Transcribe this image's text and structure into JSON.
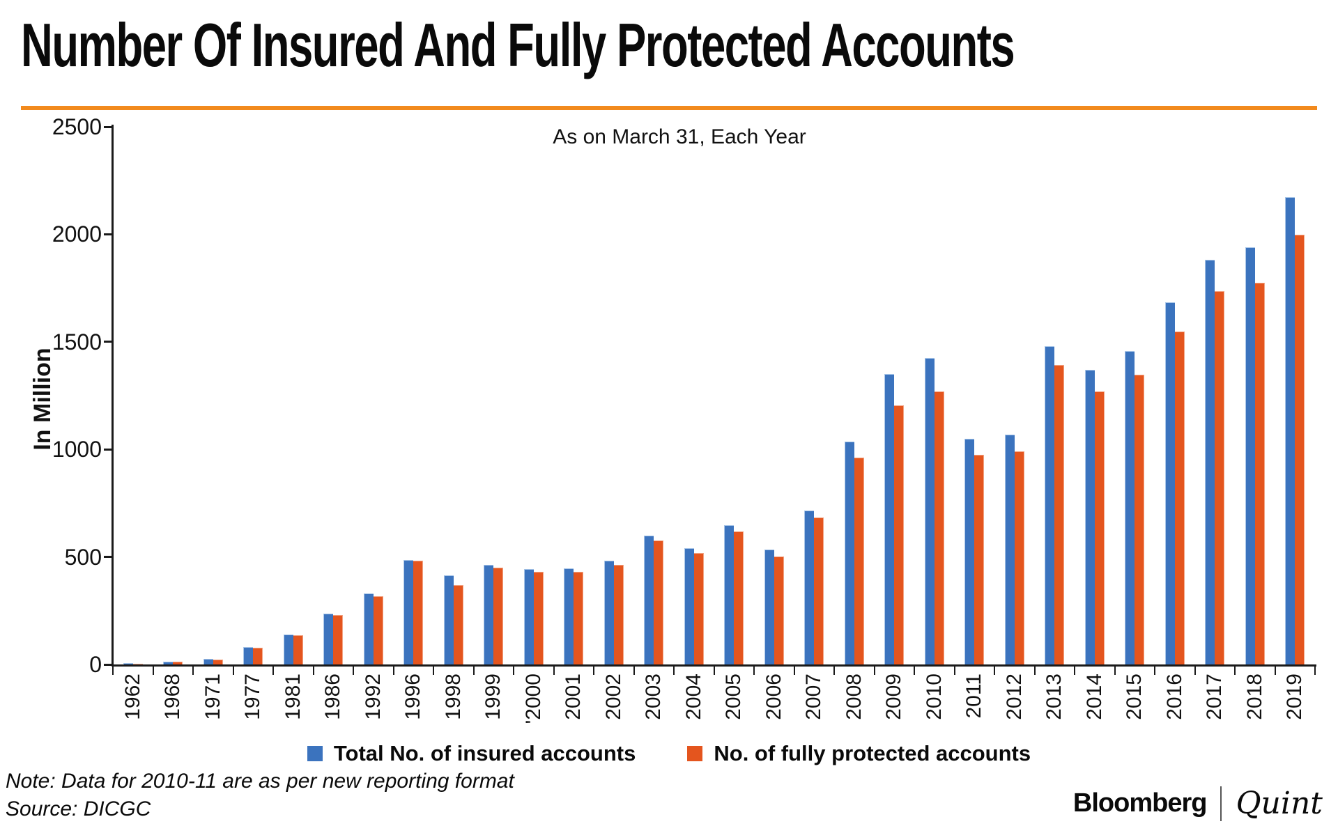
{
  "header": {
    "title": "Number Of Insured And Fully Protected Accounts",
    "rule_color": "#f28a1d"
  },
  "chart_data": {
    "type": "bar",
    "title": "Number Of Insured And Fully Protected Accounts",
    "subtitle": "As on March 31, Each Year",
    "xlabel": "",
    "ylabel": "In Million",
    "ylim": [
      0,
      2500
    ],
    "yticks": [
      0,
      500,
      1000,
      1500,
      2000,
      2500
    ],
    "grid": false,
    "legend_position": "bottom",
    "categories": [
      "1962",
      "1968",
      "1971",
      "1977",
      "1981",
      "1986",
      "1992",
      "1996",
      "1998",
      "1999",
      "'2000",
      "2001",
      "2002",
      "2003",
      "2004",
      "2005",
      "2006",
      "2007",
      "2008",
      "2009",
      "2010",
      "2011",
      "2012",
      "2013",
      "2014",
      "2015",
      "2016",
      "2017",
      "2018",
      "2019"
    ],
    "series": [
      {
        "name": "Total No. of insured accounts",
        "color": "#3b73be",
        "values": [
          5,
          14,
          27,
          80,
          140,
          235,
          331,
          487,
          415,
          463,
          443,
          447,
          483,
          599,
          542,
          648,
          535,
          716,
          1037,
          1351,
          1424,
          1049,
          1070,
          1481,
          1370,
          1457,
          1683,
          1882,
          1939,
          2174
        ]
      },
      {
        "name": "No. of fully protected accounts",
        "color": "#e4551e",
        "values": [
          4,
          13,
          24,
          78,
          136,
          230,
          318,
          481,
          370,
          450,
          430,
          432,
          462,
          577,
          518,
          620,
          503,
          683,
          961,
          1206,
          1268,
          975,
          992,
          1392,
          1268,
          1346,
          1549,
          1737,
          1773,
          1997
        ]
      }
    ]
  },
  "footnote": {
    "note": "Note: Data for 2010-11 are as per new reporting format",
    "source": "Source: DICGC"
  },
  "brand": {
    "bloomberg": "Bloomberg",
    "quint": "Quint"
  }
}
